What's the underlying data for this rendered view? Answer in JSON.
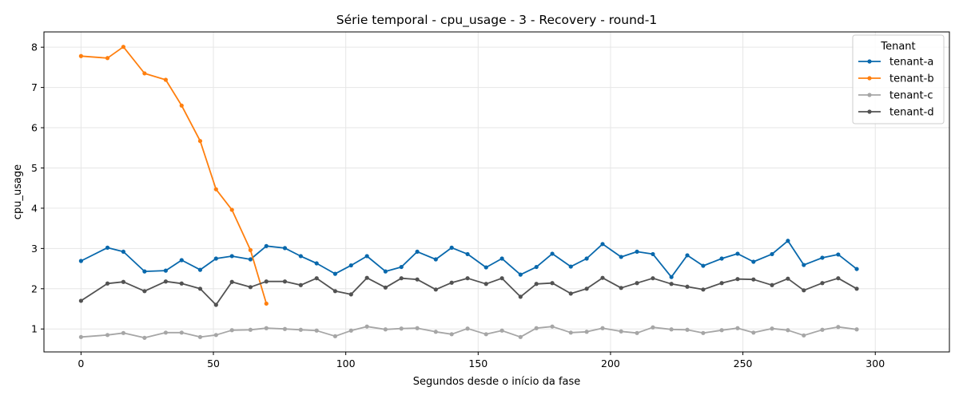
{
  "chart_data": {
    "type": "line",
    "title": "Série temporal - cpu_usage - 3 - Recovery - round-1",
    "xlabel": "Segundos desde o início da fase",
    "ylabel": "cpu_usage",
    "xlim": [
      -14,
      328
    ],
    "ylim": [
      0.43,
      8.38
    ],
    "x_ticks": [
      0,
      50,
      100,
      150,
      200,
      250,
      300
    ],
    "y_ticks": [
      1,
      2,
      3,
      4,
      5,
      6,
      7,
      8
    ],
    "grid": true,
    "legend": {
      "title": "Tenant",
      "position": "top-right"
    },
    "series": [
      {
        "name": "tenant-a",
        "color": "#0868ac",
        "x": [
          0,
          10,
          16,
          24,
          32,
          38,
          45,
          51,
          57,
          64,
          70,
          77,
          83,
          89,
          96,
          102,
          108,
          115,
          121,
          127,
          134,
          140,
          146,
          153,
          159,
          166,
          172,
          178,
          185,
          191,
          197,
          204,
          210,
          216,
          223,
          229,
          235,
          242,
          248,
          254,
          261,
          267,
          273,
          280,
          286,
          293
        ],
        "values": [
          2.69,
          3.02,
          2.92,
          2.43,
          2.45,
          2.71,
          2.47,
          2.75,
          2.81,
          2.73,
          3.06,
          3.01,
          2.81,
          2.63,
          2.37,
          2.58,
          2.81,
          2.43,
          2.54,
          2.92,
          2.73,
          3.02,
          2.86,
          2.53,
          2.75,
          2.35,
          2.54,
          2.87,
          2.55,
          2.75,
          3.11,
          2.79,
          2.92,
          2.86,
          2.29,
          2.83,
          2.57,
          2.75,
          2.87,
          2.67,
          2.86,
          3.19,
          2.59,
          2.77,
          2.85,
          2.49
        ]
      },
      {
        "name": "tenant-b",
        "color": "#ff7f0e",
        "x": [
          0,
          10,
          16,
          24,
          32,
          38,
          45,
          51,
          57,
          64,
          70
        ],
        "values": [
          7.78,
          7.73,
          8.01,
          7.35,
          7.19,
          6.55,
          5.67,
          4.47,
          3.96,
          2.96,
          1.63
        ]
      },
      {
        "name": "tenant-c",
        "color": "#a6a6a6",
        "x": [
          0,
          10,
          16,
          24,
          32,
          38,
          45,
          51,
          57,
          64,
          70,
          77,
          83,
          89,
          96,
          102,
          108,
          115,
          121,
          127,
          134,
          140,
          146,
          153,
          159,
          166,
          172,
          178,
          185,
          191,
          197,
          204,
          210,
          216,
          223,
          229,
          235,
          242,
          248,
          254,
          261,
          267,
          273,
          280,
          286,
          293
        ],
        "values": [
          0.8,
          0.85,
          0.9,
          0.78,
          0.91,
          0.91,
          0.8,
          0.85,
          0.97,
          0.98,
          1.02,
          1.0,
          0.98,
          0.96,
          0.82,
          0.96,
          1.06,
          0.99,
          1.01,
          1.02,
          0.93,
          0.87,
          1.01,
          0.87,
          0.96,
          0.8,
          1.02,
          1.06,
          0.91,
          0.93,
          1.02,
          0.94,
          0.9,
          1.04,
          0.99,
          0.98,
          0.9,
          0.97,
          1.02,
          0.91,
          1.01,
          0.97,
          0.84,
          0.98,
          1.05,
          0.99
        ]
      },
      {
        "name": "tenant-d",
        "color": "#525252",
        "x": [
          0,
          10,
          16,
          24,
          32,
          38,
          45,
          51,
          57,
          64,
          70,
          77,
          83,
          89,
          96,
          102,
          108,
          115,
          121,
          127,
          134,
          140,
          146,
          153,
          159,
          166,
          172,
          178,
          185,
          191,
          197,
          204,
          210,
          216,
          223,
          229,
          235,
          242,
          248,
          254,
          261,
          267,
          273,
          280,
          286,
          293
        ],
        "values": [
          1.7,
          2.13,
          2.17,
          1.94,
          2.18,
          2.13,
          2.0,
          1.6,
          2.17,
          2.04,
          2.18,
          2.18,
          2.09,
          2.26,
          1.94,
          1.86,
          2.27,
          2.03,
          2.26,
          2.23,
          1.98,
          2.15,
          2.26,
          2.12,
          2.26,
          1.8,
          2.12,
          2.14,
          1.88,
          2.0,
          2.27,
          2.02,
          2.14,
          2.26,
          2.12,
          2.05,
          1.98,
          2.14,
          2.24,
          2.23,
          2.09,
          2.25,
          1.96,
          2.14,
          2.26,
          2.0
        ]
      }
    ]
  }
}
